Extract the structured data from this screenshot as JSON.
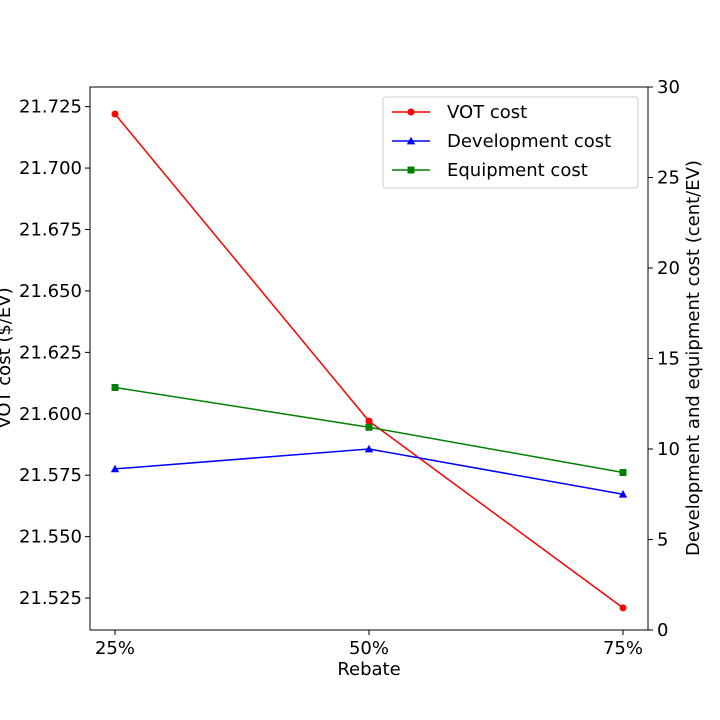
{
  "chart_data": {
    "type": "line",
    "categories": [
      "25%",
      "50%",
      "75%"
    ],
    "xlabel": "Rebate",
    "ylabel_left": "VOT cost ($/EV)",
    "ylabel_right": "Development and equipment cost (cent/EV)",
    "ylim_left": [
      21.512,
      21.733
    ],
    "ylim_right": [
      0,
      30
    ],
    "yticks_left": [
      "21.525",
      "21.550",
      "21.575",
      "21.600",
      "21.625",
      "21.650",
      "21.675",
      "21.700",
      "21.725"
    ],
    "yticks_right": [
      "0",
      "5",
      "10",
      "15",
      "20",
      "25",
      "30"
    ],
    "grid": false,
    "legend_position": "top-right",
    "series": [
      {
        "name": "VOT cost",
        "axis": "left",
        "color": "#ff0000",
        "marker": "circle",
        "values": [
          21.722,
          21.597,
          21.521
        ]
      },
      {
        "name": "Development cost",
        "axis": "right",
        "color": "#0000ff",
        "marker": "triangle",
        "values": [
          8.9,
          10.0,
          7.5
        ]
      },
      {
        "name": "Equipment cost",
        "axis": "right",
        "color": "#008000",
        "marker": "square",
        "values": [
          13.4,
          11.2,
          8.7
        ]
      }
    ]
  }
}
